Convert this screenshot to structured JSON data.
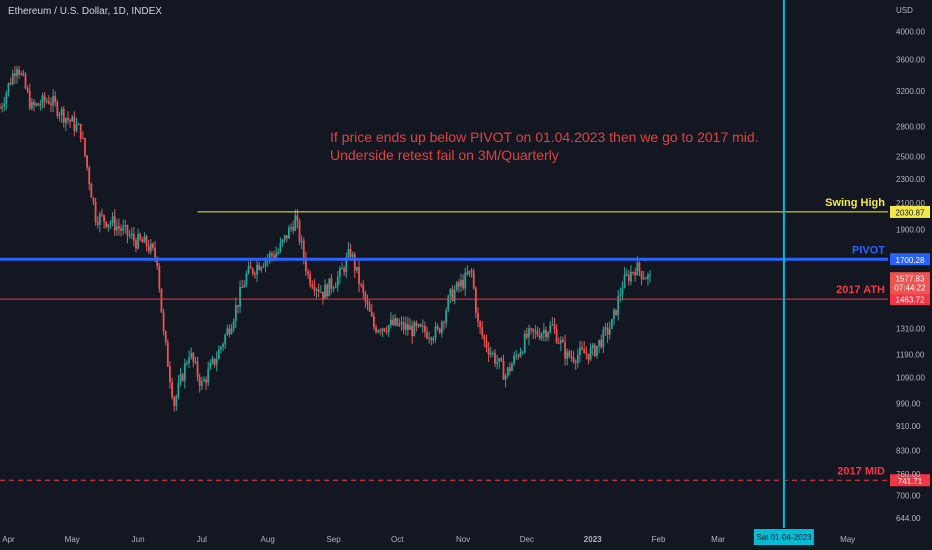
{
  "title": "Ethereum / U.S. Dollar, 1D, INDEX",
  "currency": "USD",
  "annotation": {
    "line1": "If price ends up below PIVOT on 01.04.2023 then we go to 2017 mid.",
    "line2": "Underside retest fail on 3M/Quarterly"
  },
  "colors": {
    "background": "#131722",
    "up": "#26a69a",
    "down": "#ef5350",
    "swing_high": "#f5e84a",
    "pivot": "#2962ff",
    "ath": "#f23645",
    "mid": "#f23645",
    "vline": "#00bcd4",
    "text": "#b2b5be"
  },
  "chart_data": {
    "type": "candlestick",
    "title": "Ethereum / U.S. Dollar, 1D, INDEX",
    "y_scale": "log",
    "ylim": [
      620,
      4500
    ],
    "y_ticks": [
      "4000.00",
      "3600.00",
      "3200.00",
      "2800.00",
      "2500.00",
      "2300.00",
      "2100.00",
      "1900.00",
      "1580.00",
      "1310.00",
      "1190.00",
      "1090.00",
      "990.00",
      "910.00",
      "830.00",
      "760.00",
      "700.00",
      "644.00"
    ],
    "x_labels": [
      "Apr",
      "May",
      "Jun",
      "Jul",
      "Aug",
      "Sep",
      "Oct",
      "Nov",
      "Dec",
      "2023",
      "Feb",
      "Mar",
      "May"
    ],
    "x_range": [
      "2022-03-28",
      "2023-05-20"
    ],
    "x_label_dates": [
      "2022-04-01",
      "2022-05-01",
      "2022-06-01",
      "2022-07-01",
      "2022-08-01",
      "2022-09-01",
      "2022-10-01",
      "2022-11-01",
      "2022-12-01",
      "2023-01-01",
      "2023-02-01",
      "2023-03-01",
      "2023-05-01"
    ],
    "price_path": [
      [
        "2022-03-28",
        3000
      ],
      [
        "2022-04-05",
        3550
      ],
      [
        "2022-04-12",
        3000
      ],
      [
        "2022-04-20",
        3100
      ],
      [
        "2022-04-28",
        2900
      ],
      [
        "2022-05-05",
        2750
      ],
      [
        "2022-05-12",
        2000
      ],
      [
        "2022-05-20",
        1950
      ],
      [
        "2022-05-31",
        1820
      ],
      [
        "2022-06-05",
        1800
      ],
      [
        "2022-06-10",
        1700
      ],
      [
        "2022-06-13",
        1280
      ],
      [
        "2022-06-18",
        990
      ],
      [
        "2022-06-25",
        1200
      ],
      [
        "2022-07-01",
        1060
      ],
      [
        "2022-07-08",
        1180
      ],
      [
        "2022-07-15",
        1350
      ],
      [
        "2022-07-22",
        1600
      ],
      [
        "2022-07-30",
        1700
      ],
      [
        "2022-08-06",
        1750
      ],
      [
        "2022-08-14",
        1980
      ],
      [
        "2022-08-20",
        1600
      ],
      [
        "2022-08-27",
        1500
      ],
      [
        "2022-09-04",
        1600
      ],
      [
        "2022-09-09",
        1750
      ],
      [
        "2022-09-15",
        1480
      ],
      [
        "2022-09-20",
        1320
      ],
      [
        "2022-09-30",
        1330
      ],
      [
        "2022-10-10",
        1300
      ],
      [
        "2022-10-20",
        1290
      ],
      [
        "2022-10-26",
        1480
      ],
      [
        "2022-11-05",
        1620
      ],
      [
        "2022-11-08",
        1330
      ],
      [
        "2022-11-11",
        1250
      ],
      [
        "2022-11-21",
        1100
      ],
      [
        "2022-12-01",
        1270
      ],
      [
        "2022-12-13",
        1320
      ],
      [
        "2022-12-20",
        1180
      ],
      [
        "2023-01-01",
        1200
      ],
      [
        "2023-01-10",
        1330
      ],
      [
        "2023-01-15",
        1550
      ],
      [
        "2023-01-21",
        1650
      ],
      [
        "2023-01-28",
        1577
      ]
    ],
    "levels": [
      {
        "name": "Swing High",
        "price": 2030.87,
        "label": "2030.87",
        "style": "solid",
        "start": "2022-06-29"
      },
      {
        "name": "PIVOT",
        "price": 1700.28,
        "label": "1700.28",
        "style": "solid"
      },
      {
        "name": "2017 ATH",
        "price": 1463.72,
        "label": "1463.72",
        "style": "solid"
      },
      {
        "name": "2017 MID",
        "price": 741.71,
        "label": "741.71",
        "style": "dashed"
      }
    ],
    "last_price": {
      "price": 1577.83,
      "label": "1577.83",
      "countdown": "07:44:22"
    },
    "vertical_marker": {
      "date": "2023-04-01",
      "label": "Sat 01-04-2023"
    }
  }
}
